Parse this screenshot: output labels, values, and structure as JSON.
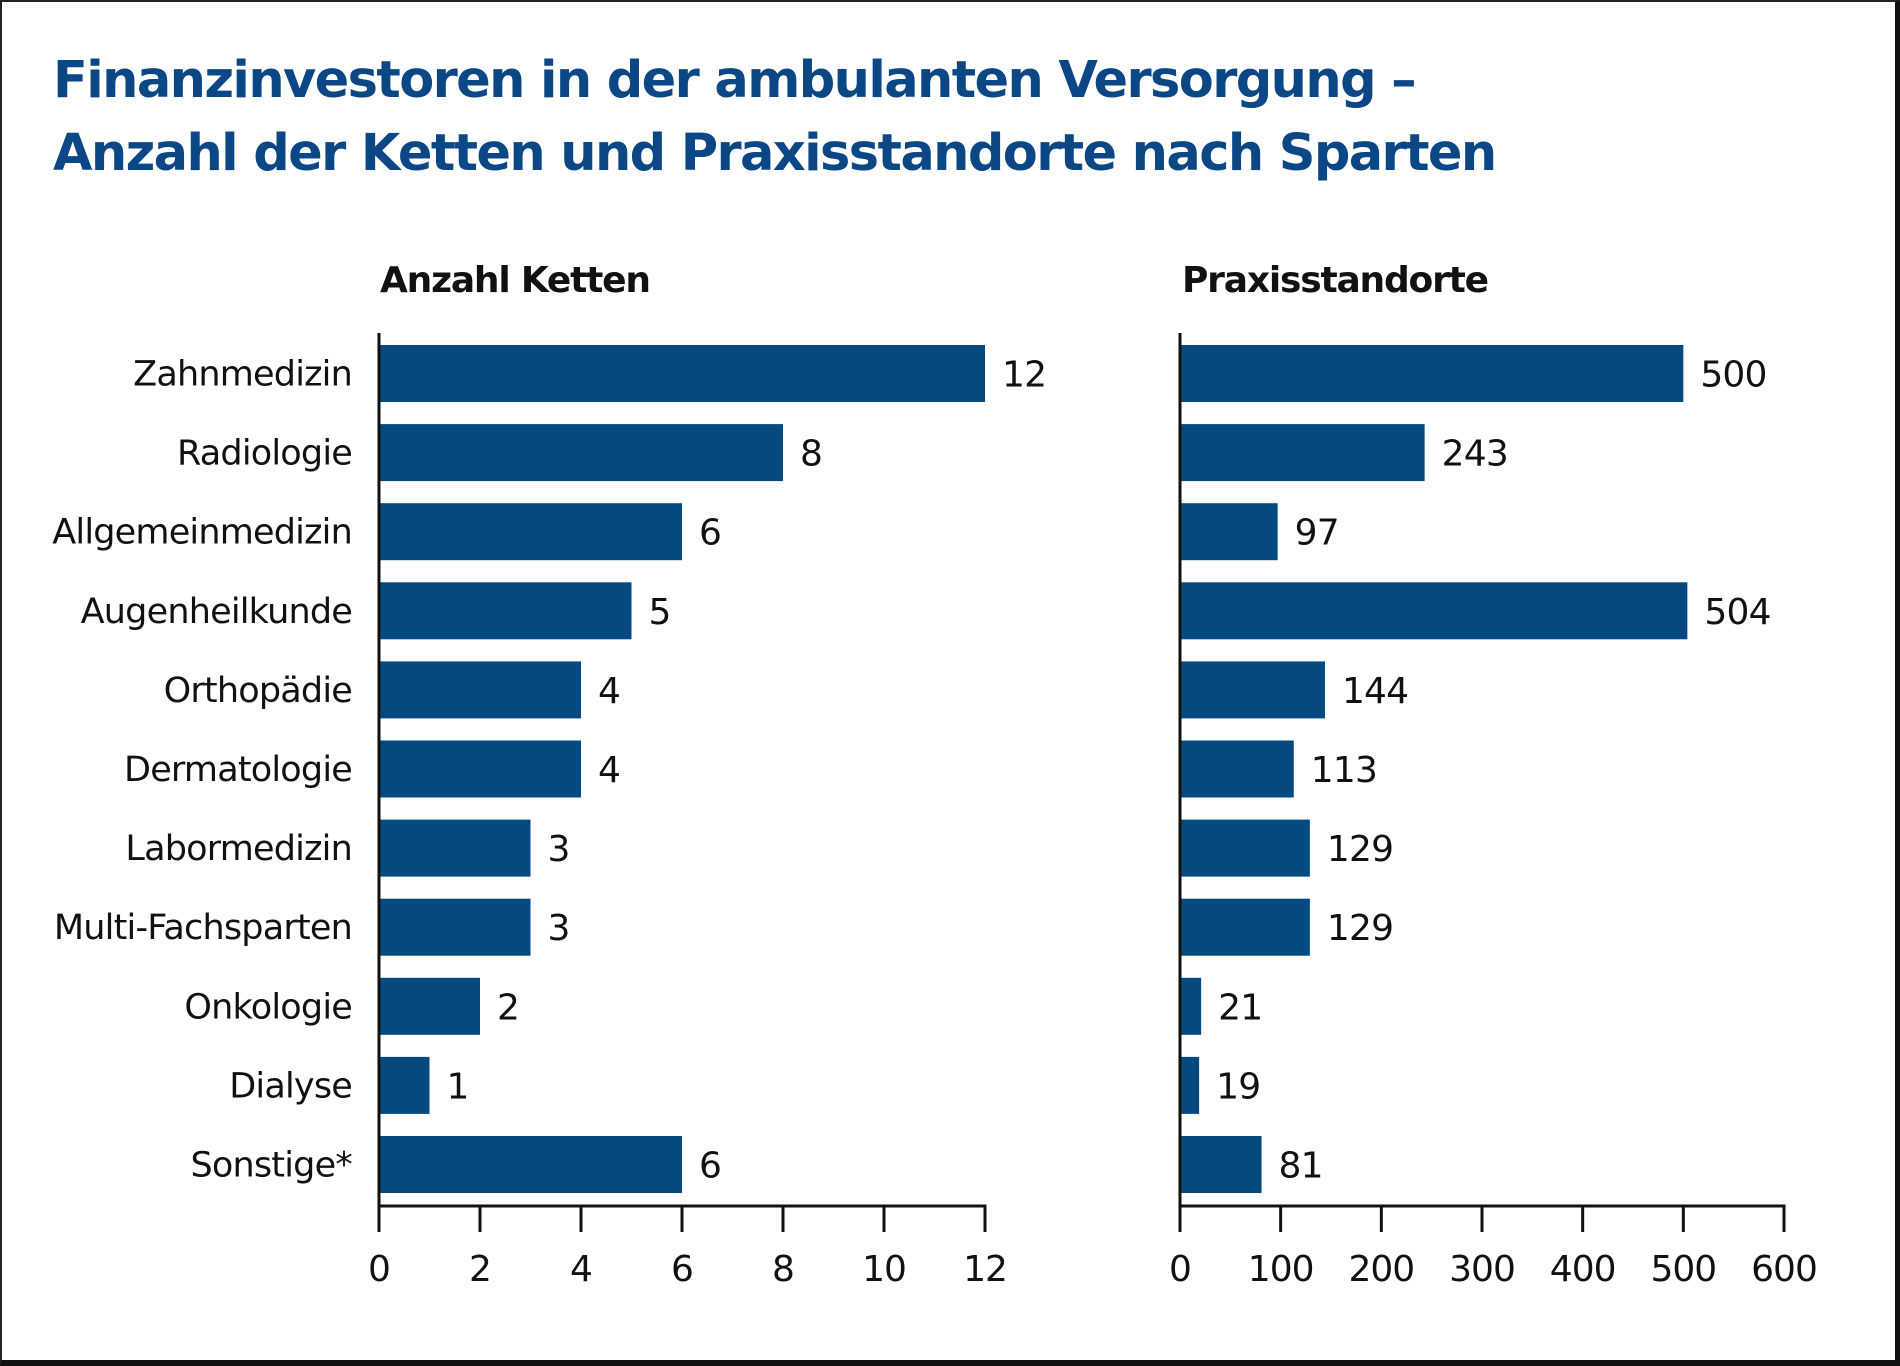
{
  "chart_data": [
    {
      "type": "bar",
      "orientation": "horizontal",
      "title": "Finanzinvestoren in der ambulanten Versorgung – Anzahl der Ketten und Praxisstandorte nach Sparten",
      "subtitle": "Anzahl Ketten",
      "categories": [
        "Zahnmedizin",
        "Radiologie",
        "Allgemeinmedizin",
        "Augenheilkunde",
        "Orthopädie",
        "Dermatologie",
        "Labormedizin",
        "Multi-Fachsparten",
        "Onkologie",
        "Dialyse",
        "Sonstige*"
      ],
      "values": [
        12,
        8,
        6,
        5,
        4,
        4,
        3,
        3,
        2,
        1,
        6
      ],
      "xlabel": "",
      "ylabel": "",
      "xlim": [
        0,
        12
      ],
      "xticks": [
        0,
        2,
        4,
        6,
        8,
        10,
        12
      ],
      "grid": false,
      "data_labels": true,
      "color": "#044a80"
    },
    {
      "type": "bar",
      "orientation": "horizontal",
      "title": "Finanzinvestoren in der ambulanten Versorgung – Anzahl der Ketten und Praxisstandorte nach Sparten",
      "subtitle": "Praxisstandorte",
      "categories": [
        "Zahnmedizin",
        "Radiologie",
        "Allgemeinmedizin",
        "Augenheilkunde",
        "Orthopädie",
        "Dermatologie",
        "Labormedizin",
        "Multi-Fachsparten",
        "Onkologie",
        "Dialyse",
        "Sonstige*"
      ],
      "values": [
        500,
        243,
        97,
        504,
        144,
        113,
        129,
        129,
        21,
        19,
        81
      ],
      "xlabel": "",
      "ylabel": "",
      "xlim": [
        0,
        600
      ],
      "xticks": [
        0,
        100,
        200,
        300,
        400,
        500,
        600
      ],
      "grid": false,
      "data_labels": true,
      "color": "#044a80"
    }
  ],
  "header": {
    "title_line1": "Finanzinvestoren in der ambulanten Versorgung –",
    "title_line2": "Anzahl der Ketten und Praxisstandorte nach Sparten",
    "title_color": "#0b4785"
  }
}
